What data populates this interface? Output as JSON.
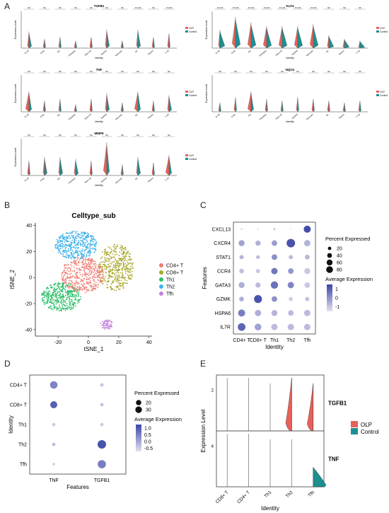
{
  "colors": {
    "olp": "#e8605a",
    "control": "#1e8f8f",
    "tsne": {
      "CD4+ T": "#ef7b72",
      "CD8+ T": "#a9a82c",
      "Th1": "#2fbf6a",
      "Th2": "#3eb2ea",
      "Tfh": "#c384d8"
    },
    "dot_low": "#e4e0ef",
    "dot_high": "#3b47a6"
  },
  "panel_labels": {
    "a": "A",
    "b": "B",
    "c": "C",
    "d": "D",
    "e": "E"
  },
  "panelA": {
    "violin_panels": [
      {
        "gene": "TGFB1",
        "ylabel": "Expression Level",
        "xlabel": "Identity",
        "legend": [
          "OLP",
          "Control"
        ],
        "categories": [
          "B cell",
          "Endo",
          "Epi",
          "Fibroblast",
          "Mast cell",
          "Myeloid",
          "Myocytes",
          "NK",
          "Plasma",
          "T cell"
        ],
        "sig": [
          "NS",
          "NS",
          "NS",
          "NS",
          "NS",
          "NS",
          "NS",
          "P<0.05",
          "NS",
          "P<0.05"
        ],
        "heights": [
          0.45,
          0.25,
          0.3,
          0.2,
          0.3,
          0.5,
          0.2,
          0.5,
          0.3,
          0.4
        ]
      },
      {
        "gene": "KLF4",
        "ylabel": "Expression Level",
        "xlabel": "Identity",
        "legend": [
          "OLP",
          "Control"
        ],
        "categories": [
          "B cell",
          "Endo",
          "Epi",
          "Fibroblast",
          "Mast cell",
          "Myeloid",
          "Myocytes",
          "NK",
          "Plasma",
          "T cell"
        ],
        "sig": [
          "P<0.05",
          "P<0.05",
          "P<0.05",
          "P<0.05",
          "P<0.05",
          "P<0.05",
          "P<0.05",
          "NS",
          "NS",
          "NS"
        ],
        "heights": [
          0.5,
          0.85,
          0.7,
          0.6,
          0.6,
          0.6,
          0.65,
          0.35,
          0.25,
          0.2
        ]
      },
      {
        "gene": "TNF",
        "ylabel": "Expression Level",
        "xlabel": "Identity",
        "legend": [
          "OLP",
          "Control"
        ],
        "categories": [
          "B cell",
          "Endo",
          "Epi",
          "Fibroblast",
          "Mast cell",
          "Myeloid",
          "Myocytes",
          "NK",
          "Plasma",
          "T cell"
        ],
        "sig": [
          "NS",
          "NS",
          "NS",
          "NS",
          "NS",
          "NS",
          "NS",
          "NS",
          "NS",
          "NS"
        ],
        "heights": [
          0.55,
          0.3,
          0.35,
          0.2,
          0.35,
          0.5,
          0.25,
          0.55,
          0.3,
          0.45
        ]
      },
      {
        "gene": "NQO1",
        "ylabel": "Expression Level",
        "xlabel": "Identity",
        "legend": [
          "OLP",
          "Control"
        ],
        "categories": [
          "B cell",
          "Endo",
          "Epi",
          "Fibroblast",
          "Mast cell",
          "Myeloid",
          "Myocytes",
          "NK",
          "Plasma",
          "T cell"
        ],
        "sig": [
          "NS",
          "NS",
          "NS",
          "NS",
          "NS",
          "NS",
          "NS",
          "NS",
          "NS",
          "NS"
        ],
        "heights": [
          0.25,
          0.4,
          0.55,
          0.35,
          0.3,
          0.4,
          0.35,
          0.3,
          0.25,
          0.3
        ]
      },
      {
        "gene": "MMP9",
        "ylabel": "Expression Level",
        "xlabel": "Identity",
        "legend": [
          "OLP",
          "Control"
        ],
        "categories": [
          "B cell",
          "Endo",
          "Epi",
          "Fibroblast",
          "Mast cell",
          "Myeloid",
          "Myocytes",
          "NK",
          "Plasma",
          "T cell"
        ],
        "sig": [
          "NS",
          "NS",
          "NS",
          "NS",
          "NS",
          "NS",
          "NS",
          "NS",
          "NS",
          "NS"
        ],
        "heights": [
          0.4,
          0.5,
          0.5,
          0.45,
          0.4,
          0.9,
          0.3,
          0.5,
          0.35,
          0.55
        ]
      }
    ]
  },
  "chart_data": [
    {
      "type": "scatter",
      "title": "Celltype_sub",
      "xlabel": "tSNE_1",
      "ylabel": "tSNE_2",
      "xlim": [
        -35,
        42
      ],
      "ylim": [
        -45,
        42
      ],
      "xticks": [
        -20,
        0,
        20,
        40
      ],
      "yticks": [
        -40,
        -20,
        0,
        20,
        40
      ],
      "series": [
        {
          "name": "CD4+ T",
          "cx": -4,
          "cy": 2,
          "rx": 14,
          "ry": 14
        },
        {
          "name": "CD8+ T",
          "cx": 18,
          "cy": 8,
          "rx": 12,
          "ry": 18
        },
        {
          "name": "Th1",
          "cx": -18,
          "cy": -15,
          "rx": 13,
          "ry": 11
        },
        {
          "name": "Th2",
          "cx": -8,
          "cy": 25,
          "rx": 14,
          "ry": 11
        },
        {
          "name": "Tfh",
          "cx": 12,
          "cy": -36,
          "rx": 4,
          "ry": 4
        }
      ]
    },
    {
      "type": "dot",
      "xlabel": "Identity",
      "ylabel": "Features",
      "categories": [
        "CD4+ T",
        "CD8+ T",
        "Th1",
        "Th2",
        "Tfh"
      ],
      "features": [
        "CXCL13",
        "CXCR4",
        "STAT1",
        "CCR4",
        "GATA3",
        "GZMK",
        "HSPA6",
        "IL7R"
      ],
      "size_legend_title": "Percent Expressed",
      "size_legend": [
        "20",
        "40",
        "60",
        "80"
      ],
      "color_legend_title": "Average Expression",
      "color_legend": [
        "1",
        "0",
        "-1"
      ],
      "pct": [
        [
          3,
          2,
          4,
          2,
          55
        ],
        [
          40,
          30,
          35,
          80,
          45
        ],
        [
          20,
          15,
          35,
          20,
          25
        ],
        [
          25,
          20,
          45,
          35,
          40
        ],
        [
          40,
          30,
          60,
          45,
          35
        ],
        [
          25,
          70,
          35,
          20,
          20
        ],
        [
          55,
          45,
          40,
          35,
          45
        ],
        [
          65,
          50,
          45,
          45,
          45
        ]
      ],
      "avg": [
        [
          -0.6,
          -0.8,
          -0.4,
          -0.9,
          1.4
        ],
        [
          0.0,
          -0.2,
          0.1,
          1.3,
          -0.3
        ],
        [
          -0.3,
          -0.4,
          0.3,
          -0.4,
          -0.3
        ],
        [
          -0.5,
          -0.6,
          0.7,
          0.2,
          -0.6
        ],
        [
          -0.2,
          -0.4,
          0.8,
          0.5,
          -0.6
        ],
        [
          -0.2,
          1.3,
          0.3,
          -0.7,
          -0.5
        ],
        [
          0.6,
          -0.2,
          -0.3,
          -0.4,
          -0.4
        ],
        [
          1.0,
          0.0,
          -0.4,
          -0.4,
          -0.4
        ]
      ]
    },
    {
      "type": "dot",
      "xlabel": "Features",
      "ylabel": "Identity",
      "categories": [
        "TNF",
        "TGFB1"
      ],
      "features": [
        "CD4+ T",
        "CD8+ T",
        "Th1",
        "Th2",
        "Tfh"
      ],
      "size_legend_title": "Percent Expressed",
      "size_legend": [
        "20",
        "30"
      ],
      "color_legend_title": "Average Expression",
      "color_legend": [
        "1.0",
        "0.5",
        "0.0",
        "-0.5"
      ],
      "pct": [
        [
          25,
          5
        ],
        [
          22,
          5
        ],
        [
          5,
          5
        ],
        [
          5,
          32
        ],
        [
          3,
          30
        ]
      ],
      "avg": [
        [
          0.5,
          -0.5
        ],
        [
          1.1,
          -0.5
        ],
        [
          -0.6,
          -0.6
        ],
        [
          -0.4,
          1.3
        ],
        [
          -0.7,
          0.6
        ]
      ]
    },
    {
      "type": "violin",
      "xlabel": "Identity",
      "ylabel": "Expression Level",
      "categories": [
        "CD8+ T",
        "CD4+ T",
        "Th1",
        "Th2",
        "Tfh"
      ],
      "legend": [
        "OLP",
        "Control"
      ],
      "series": [
        {
          "gene": "TGFB1",
          "ytick": "2",
          "heights": [
            0.95,
            0.95,
            0.85,
            0.95,
            0.85
          ],
          "widths_olp": [
            0,
            0,
            0,
            0.55,
            0.55
          ]
        },
        {
          "gene": "TNF",
          "ytick": "4",
          "heights": [
            0.95,
            0.95,
            0.85,
            0.85,
            0.35
          ],
          "widths_control": [
            0,
            0,
            0,
            0,
            0.75
          ]
        }
      ]
    }
  ]
}
